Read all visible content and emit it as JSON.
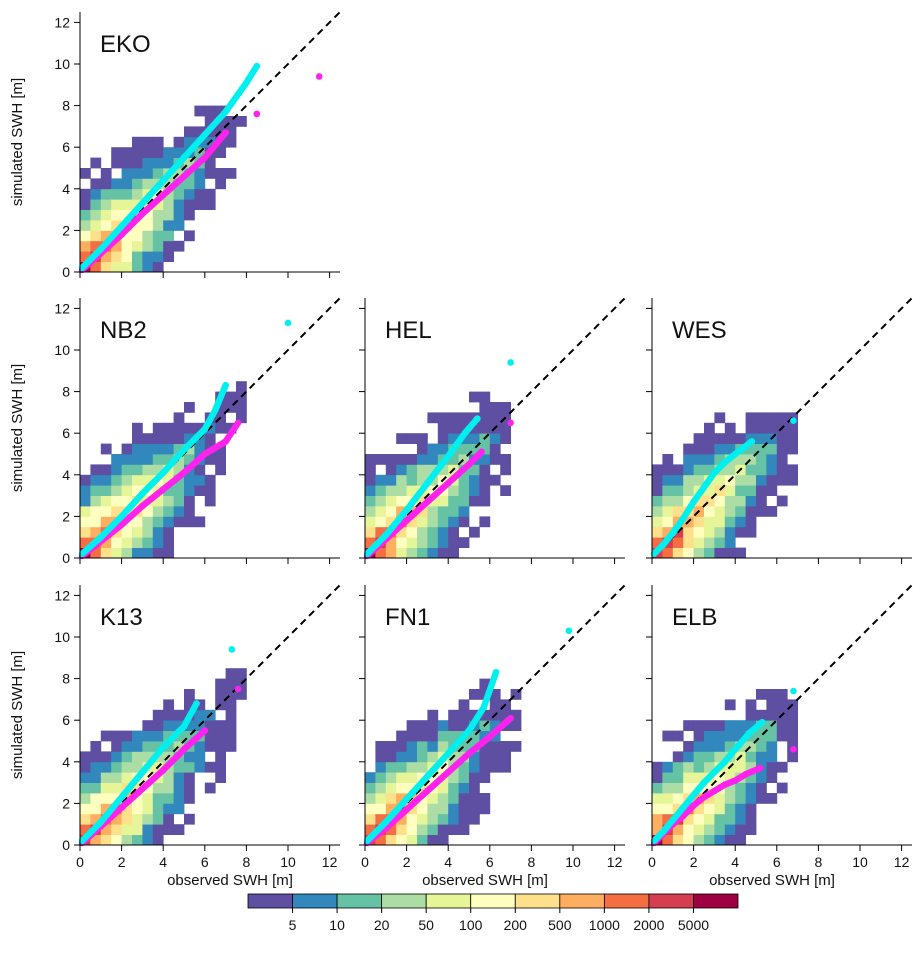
{
  "chart_data": {
    "type": "heatmap",
    "layout": "3x3 grid of scatter-density panels (top row: only first panel)",
    "xlabel": "observed SWH [m]",
    "ylabel": "simulated SWH [m]",
    "xlim": [
      0,
      12.5
    ],
    "ylim": [
      0,
      12.5
    ],
    "ticks": [
      "0",
      "2",
      "4",
      "6",
      "8",
      "10",
      "12"
    ],
    "diagonal": "1:1 dashed black line",
    "colorbar": {
      "labels": [
        "5",
        "10",
        "20",
        "50",
        "100",
        "200",
        "500",
        "1000",
        "2000",
        "5000"
      ],
      "colors": [
        "#5E4FA2",
        "#3288BD",
        "#66C2A5",
        "#ABDDA4",
        "#E6F598",
        "#FFFFBF",
        "#FEE08B",
        "#FDAE61",
        "#F46D43",
        "#D53E4F",
        "#9E0142"
      ]
    },
    "panels": [
      {
        "name": "EKO",
        "extent_x": 9.5,
        "extent_y": 12.3,
        "quantile_curve_cyan": [
          [
            0.1,
            0.2
          ],
          [
            1,
            1.1
          ],
          [
            2,
            2.2
          ],
          [
            3,
            3.3
          ],
          [
            4,
            4.4
          ],
          [
            5,
            5.5
          ],
          [
            6,
            6.6
          ],
          [
            7,
            7.7
          ],
          [
            8,
            9.1
          ],
          [
            8.5,
            9.9
          ]
        ],
        "quantile_curve_magenta": [
          [
            0.1,
            0.1
          ],
          [
            1,
            0.9
          ],
          [
            2,
            1.8
          ],
          [
            3,
            2.8
          ],
          [
            4,
            3.7
          ],
          [
            5,
            4.6
          ],
          [
            6,
            5.5
          ],
          [
            7,
            6.7
          ],
          [
            8.5,
            7.6
          ],
          [
            11.5,
            9.4
          ]
        ]
      },
      {
        "name": "NB2",
        "extent_x": 8.0,
        "extent_y": 10.0,
        "quantile_curve_cyan": [
          [
            0.1,
            0.2
          ],
          [
            1,
            1.0
          ],
          [
            2,
            2.0
          ],
          [
            3,
            3.1
          ],
          [
            4,
            4.1
          ],
          [
            5,
            5.2
          ],
          [
            6,
            6.2
          ],
          [
            6.5,
            7.1
          ],
          [
            7,
            8.3
          ],
          [
            10,
            11.3
          ]
        ],
        "quantile_curve_magenta": [
          [
            0.1,
            0.1
          ],
          [
            1,
            0.8
          ],
          [
            2,
            1.6
          ],
          [
            3,
            2.5
          ],
          [
            4,
            3.3
          ],
          [
            5,
            4.1
          ],
          [
            6,
            5.0
          ],
          [
            7,
            5.6
          ],
          [
            7.6,
            6.5
          ]
        ]
      },
      {
        "name": "HEL",
        "extent_x": 7.0,
        "extent_y": 8.5,
        "quantile_curve_cyan": [
          [
            0.1,
            0.2
          ],
          [
            1,
            1.1
          ],
          [
            2,
            2.3
          ],
          [
            3,
            3.6
          ],
          [
            4,
            4.9
          ],
          [
            4.8,
            6.0
          ],
          [
            5.4,
            6.7
          ],
          [
            7,
            9.4
          ]
        ],
        "quantile_curve_magenta": [
          [
            0.1,
            0.1
          ],
          [
            1,
            0.9
          ],
          [
            2,
            1.8
          ],
          [
            3,
            2.7
          ],
          [
            4,
            3.6
          ],
          [
            5,
            4.5
          ],
          [
            5.6,
            5.1
          ],
          [
            7,
            6.5
          ]
        ]
      },
      {
        "name": "WES",
        "extent_x": 7.0,
        "extent_y": 6.8,
        "quantile_curve_cyan": [
          [
            0.1,
            0.2
          ],
          [
            0.5,
            0.6
          ],
          [
            1,
            1.2
          ],
          [
            1.5,
            1.9
          ],
          [
            2,
            2.7
          ],
          [
            2.5,
            3.4
          ],
          [
            3,
            4.1
          ],
          [
            3.5,
            4.6
          ],
          [
            4,
            5.0
          ],
          [
            4.8,
            5.6
          ],
          [
            6.8,
            6.6
          ]
        ],
        "quantile_curve_magenta": []
      },
      {
        "name": "K13",
        "extent_x": 8.0,
        "extent_y": 8.5,
        "quantile_curve_cyan": [
          [
            0.1,
            0.2
          ],
          [
            1,
            1.1
          ],
          [
            2,
            2.3
          ],
          [
            3,
            3.5
          ],
          [
            4,
            4.7
          ],
          [
            5,
            5.7
          ],
          [
            5.6,
            6.8
          ],
          [
            7.3,
            9.4
          ]
        ],
        "quantile_curve_magenta": [
          [
            0.1,
            0.1
          ],
          [
            1,
            0.9
          ],
          [
            2,
            1.8
          ],
          [
            3,
            2.7
          ],
          [
            4,
            3.6
          ],
          [
            5,
            4.6
          ],
          [
            6,
            5.5
          ],
          [
            7.6,
            7.5
          ]
        ]
      },
      {
        "name": "FN1",
        "extent_x": 7.5,
        "extent_y": 9.3,
        "quantile_curve_cyan": [
          [
            0.1,
            0.2
          ],
          [
            1,
            1.1
          ],
          [
            2,
            2.2
          ],
          [
            3,
            3.3
          ],
          [
            4,
            4.4
          ],
          [
            5,
            5.5
          ],
          [
            5.7,
            6.6
          ],
          [
            6.3,
            8.3
          ],
          [
            9.8,
            10.3
          ]
        ],
        "quantile_curve_magenta": [
          [
            0.1,
            0.1
          ],
          [
            1,
            0.8
          ],
          [
            2,
            1.7
          ],
          [
            3,
            2.6
          ],
          [
            4,
            3.5
          ],
          [
            5,
            4.4
          ],
          [
            6,
            5.2
          ],
          [
            7,
            6.1
          ]
        ]
      },
      {
        "name": "ELB",
        "extent_x": 7.0,
        "extent_y": 7.5,
        "quantile_curve_cyan": [
          [
            0.1,
            0.2
          ],
          [
            0.5,
            0.6
          ],
          [
            1,
            1.2
          ],
          [
            1.5,
            1.8
          ],
          [
            2,
            2.4
          ],
          [
            2.5,
            3.0
          ],
          [
            3,
            3.5
          ],
          [
            3.5,
            4.0
          ],
          [
            4,
            4.6
          ],
          [
            4.7,
            5.4
          ],
          [
            5.3,
            5.9
          ],
          [
            6.8,
            7.4
          ]
        ],
        "quantile_curve_magenta": [
          [
            0.1,
            0.1
          ],
          [
            0.5,
            0.5
          ],
          [
            1,
            1.0
          ],
          [
            1.5,
            1.4
          ],
          [
            2,
            1.9
          ],
          [
            2.5,
            2.3
          ],
          [
            3,
            2.6
          ],
          [
            3.5,
            2.9
          ],
          [
            4,
            3.1
          ],
          [
            4.5,
            3.4
          ],
          [
            5.2,
            3.7
          ],
          [
            6.8,
            4.6
          ]
        ]
      }
    ]
  }
}
